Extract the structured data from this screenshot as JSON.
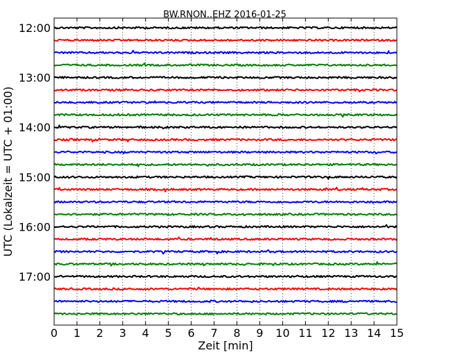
{
  "chart_data": {
    "type": "line",
    "title": "BW.RNON..EHZ 2016-01-25",
    "xlabel": "Zeit  [min]",
    "ylabel": "UTC (Lokalzeit = UTC + 01:00)",
    "xlim": [
      0,
      15
    ],
    "x_ticks": [
      0,
      1,
      2,
      3,
      4,
      5,
      6,
      7,
      8,
      9,
      10,
      11,
      12,
      13,
      14,
      15
    ],
    "y_tick_labels": [
      "12:00",
      "13:00",
      "14:00",
      "15:00",
      "16:00",
      "17:00"
    ],
    "row_interval_min": 15,
    "grid": "vertical dotted",
    "colors_cycle": [
      "#000000",
      "#ff0000",
      "#0000ff",
      "#008000"
    ],
    "traces": [
      {
        "start": "12:00",
        "color": "#000000"
      },
      {
        "start": "12:15",
        "color": "#ff0000"
      },
      {
        "start": "12:30",
        "color": "#0000ff"
      },
      {
        "start": "12:45",
        "color": "#008000"
      },
      {
        "start": "13:00",
        "color": "#000000"
      },
      {
        "start": "13:15",
        "color": "#ff0000"
      },
      {
        "start": "13:30",
        "color": "#0000ff"
      },
      {
        "start": "13:45",
        "color": "#008000"
      },
      {
        "start": "14:00",
        "color": "#000000"
      },
      {
        "start": "14:15",
        "color": "#ff0000"
      },
      {
        "start": "14:30",
        "color": "#0000ff"
      },
      {
        "start": "14:45",
        "color": "#008000"
      },
      {
        "start": "15:00",
        "color": "#000000"
      },
      {
        "start": "15:15",
        "color": "#ff0000"
      },
      {
        "start": "15:30",
        "color": "#0000ff"
      },
      {
        "start": "15:45",
        "color": "#008000"
      },
      {
        "start": "16:00",
        "color": "#000000"
      },
      {
        "start": "16:15",
        "color": "#ff0000"
      },
      {
        "start": "16:30",
        "color": "#0000ff"
      },
      {
        "start": "16:45",
        "color": "#008000"
      },
      {
        "start": "17:00",
        "color": "#000000"
      },
      {
        "start": "17:15",
        "color": "#ff0000"
      },
      {
        "start": "17:30",
        "color": "#0000ff"
      },
      {
        "start": "17:45",
        "color": "#008000"
      }
    ]
  }
}
